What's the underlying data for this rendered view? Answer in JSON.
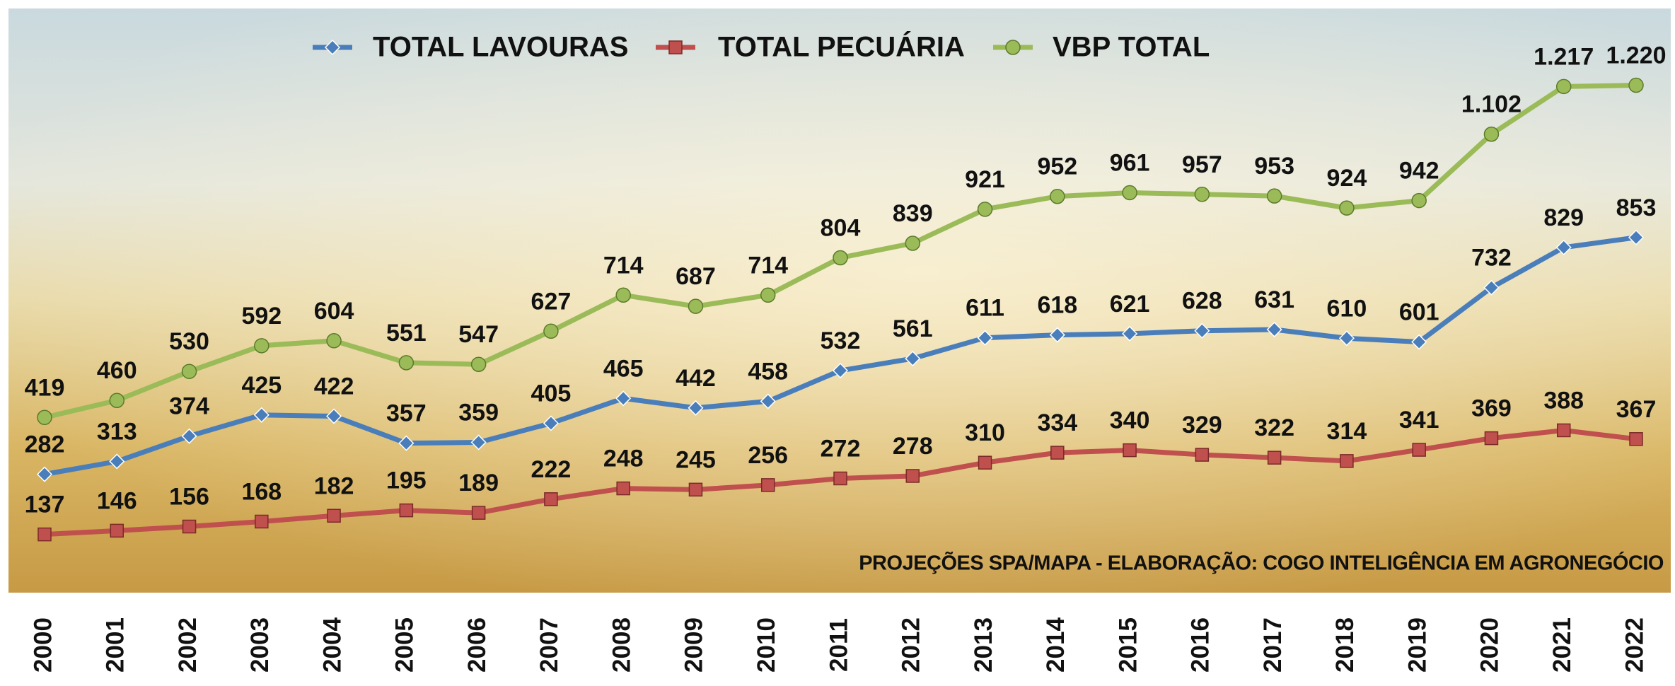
{
  "chart_data": {
    "type": "line",
    "categories": [
      "2000",
      "2001",
      "2002",
      "2003",
      "2004",
      "2005",
      "2006",
      "2007",
      "2008",
      "2009",
      "2010",
      "2011",
      "2012",
      "2013",
      "2014",
      "2015",
      "2016",
      "2017",
      "2018",
      "2019",
      "2020",
      "2021",
      "2022"
    ],
    "series": [
      {
        "name": "TOTAL LAVOURAS",
        "color": "#4a7ebb",
        "marker": "diamond",
        "values": [
          282,
          313,
          374,
          425,
          422,
          357,
          359,
          405,
          465,
          442,
          458,
          532,
          561,
          611,
          618,
          621,
          628,
          631,
          610,
          601,
          732,
          829,
          853
        ]
      },
      {
        "name": "TOTAL PECUÁRIA",
        "color": "#c0504d",
        "marker": "square",
        "values": [
          137,
          146,
          156,
          168,
          182,
          195,
          189,
          222,
          248,
          245,
          256,
          272,
          278,
          310,
          334,
          340,
          329,
          322,
          314,
          341,
          369,
          388,
          367
        ]
      },
      {
        "name": "VBP TOTAL",
        "color": "#9bbb59",
        "marker": "circle",
        "values": [
          419,
          460,
          530,
          592,
          604,
          551,
          547,
          627,
          714,
          687,
          714,
          804,
          839,
          921,
          952,
          961,
          957,
          953,
          924,
          942,
          1102,
          1217,
          1220
        ],
        "value_labels": [
          "419",
          "460",
          "530",
          "592",
          "604",
          "551",
          "547",
          "627",
          "714",
          "687",
          "714",
          "804",
          "839",
          "921",
          "952",
          "961",
          "957",
          "953",
          "924",
          "942",
          "1.102",
          "1.217",
          "1.220"
        ]
      }
    ],
    "ylim": [
      0,
      1400
    ],
    "legend": "top",
    "footnote": "PROJEÇÕES SPA/MAPA - ELABORAÇÃO: COGO INTELIGÊNCIA EM AGRONEGÓCIO"
  }
}
